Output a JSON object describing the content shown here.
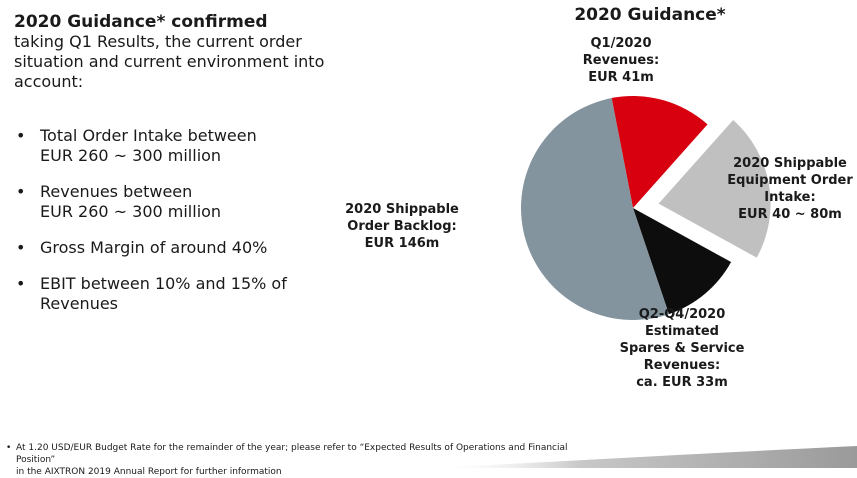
{
  "left": {
    "headline": "2020 Guidance* confirmed",
    "intro": "taking Q1 Results, the current order situation and current environment into account:",
    "bullets": [
      "Total Order Intake between\nEUR 260 ~ 300 million",
      "Revenues between\nEUR 260 ~ 300 million",
      "Gross Margin of around 40%",
      "EBIT between 10% and 15% of\nRevenues"
    ],
    "bullet_glyph": "•"
  },
  "chart_data": {
    "type": "pie",
    "title": "2020 Guidance*",
    "slices": [
      {
        "name": "Q1/2020 Revenues",
        "value": 41,
        "exploded": false,
        "color": "#d8000f",
        "label_lines": [
          "Q1/2020",
          "Revenues:",
          "EUR 41m"
        ]
      },
      {
        "name": "2020 Shippable Equipment Order Intake",
        "value": 60,
        "exploded": true,
        "color": "#c0c0c0",
        "label_lines": [
          "2020 Shippable",
          "Equipment Order",
          "Intake:",
          "EUR 40 ~ 80m"
        ]
      },
      {
        "name": "Q2-Q4/2020 Estimated Spares & Service Revenues",
        "value": 33,
        "exploded": false,
        "color": "#0d0d0d",
        "label_lines": [
          "Q2-Q4/2020",
          "Estimated",
          "Spares & Service",
          "Revenues:",
          "ca. EUR 33m"
        ]
      },
      {
        "name": "2020 Shippable Order Backlog",
        "value": 146,
        "exploded": false,
        "color": "#84949f",
        "label_lines": [
          "2020 Shippable",
          "Order Backlog:",
          "EUR 146m"
        ]
      }
    ]
  },
  "footnote": {
    "glyph": "•",
    "text": "At 1.20 USD/EUR Budget Rate for the remainder of the year; please refer to “Expected Results of Operations and Financial Position”\nin the AIXTRON 2019 Annual Report for further information"
  }
}
